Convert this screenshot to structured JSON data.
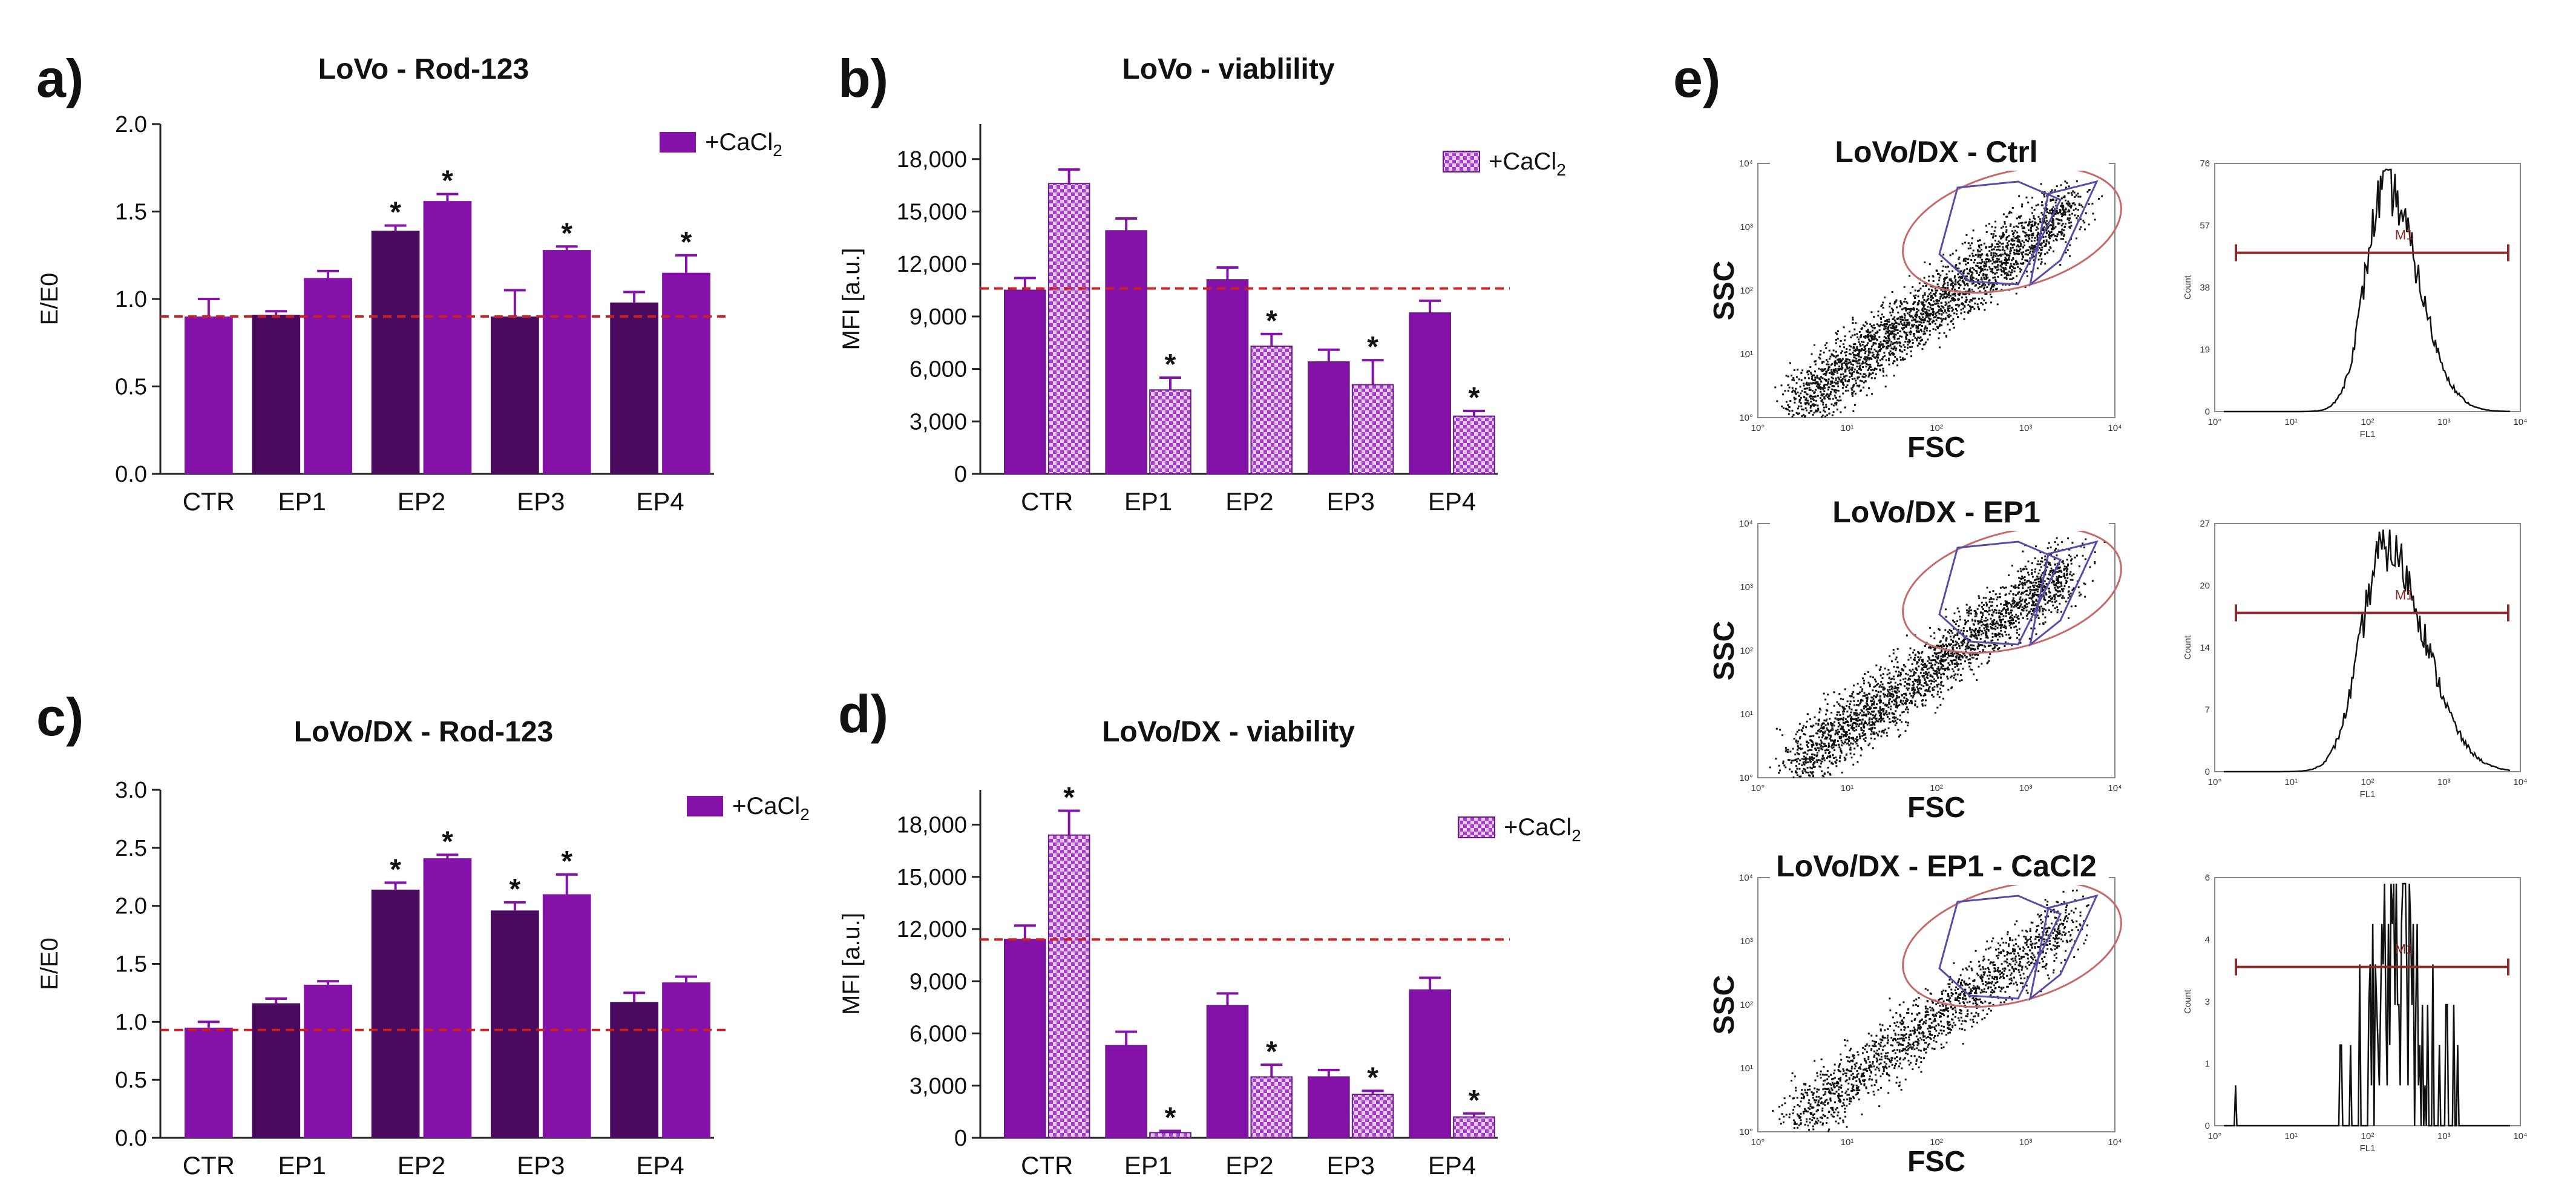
{
  "colors": {
    "purple": "#8412a8",
    "dark_purple": "#4a0a5e",
    "pattern_purple": "#b45cd4",
    "ref_line": "#cc1f1f",
    "gate_ellipse": "#c46a6a",
    "gate_poly": "#5b4aa8",
    "marker": "#8b2a2a"
  },
  "panels": {
    "a": {
      "letter": "a)"
    },
    "b": {
      "letter": "b)"
    },
    "c": {
      "letter": "c)"
    },
    "d": {
      "letter": "d)"
    },
    "e": {
      "letter": "e)"
    }
  },
  "chart_data": [
    {
      "id": "a",
      "type": "bar",
      "title": "LoVo - Rod-123",
      "ylabel": "E/E0",
      "xlabel": "",
      "ylim": [
        0,
        2.0
      ],
      "yticks": [
        "0.0",
        "0.5",
        "1.0",
        "1.5",
        "2.0"
      ],
      "ytick_values": [
        0,
        0.5,
        1.0,
        1.5,
        2.0
      ],
      "categories": [
        "CTR",
        "EP1",
        "EP2",
        "EP3",
        "EP4"
      ],
      "legend": {
        "prefix": "+CaCl",
        "sub": "2",
        "position": "top-right"
      },
      "reference_line": 0.9,
      "bars": [
        {
          "group": "CTR",
          "cond": "control",
          "value": 0.9,
          "error": 0.1,
          "sig": false
        },
        {
          "group": "EP1",
          "cond": "control",
          "value": 0.91,
          "error": 0.02,
          "sig": false
        },
        {
          "group": "EP1",
          "cond": "+CaCl2",
          "value": 1.12,
          "error": 0.04,
          "sig": false
        },
        {
          "group": "EP2",
          "cond": "control",
          "value": 1.39,
          "error": 0.03,
          "sig": true
        },
        {
          "group": "EP2",
          "cond": "+CaCl2",
          "value": 1.56,
          "error": 0.04,
          "sig": true
        },
        {
          "group": "EP3",
          "cond": "control",
          "value": 0.9,
          "error": 0.15,
          "sig": false
        },
        {
          "group": "EP3",
          "cond": "+CaCl2",
          "value": 1.28,
          "error": 0.02,
          "sig": true
        },
        {
          "group": "EP4",
          "cond": "control",
          "value": 0.98,
          "error": 0.06,
          "sig": false
        },
        {
          "group": "EP4",
          "cond": "+CaCl2",
          "value": 1.15,
          "error": 0.1,
          "sig": true
        }
      ],
      "sig_marker": "*"
    },
    {
      "id": "b",
      "type": "bar",
      "title": "LoVo - viablility",
      "ylabel": "MFI [a.u.]",
      "xlabel": "",
      "ylim": [
        0,
        20000
      ],
      "yticks": [
        "0",
        "3,000",
        "6,000",
        "9,000",
        "12,000",
        "15,000",
        "18,000"
      ],
      "ytick_values": [
        0,
        3000,
        6000,
        9000,
        12000,
        15000,
        18000
      ],
      "categories": [
        "CTR",
        "EP1",
        "EP2",
        "EP3",
        "EP4"
      ],
      "legend": {
        "prefix": "+CaCl",
        "sub": "2",
        "position": "top-right"
      },
      "reference_line": 10600,
      "bars": [
        {
          "group": "CTR",
          "cond": "control",
          "value": 10500,
          "error": 700,
          "sig": false
        },
        {
          "group": "CTR",
          "cond": "+CaCl2",
          "value": 16600,
          "error": 800,
          "sig": false
        },
        {
          "group": "EP1",
          "cond": "control",
          "value": 13900,
          "error": 700,
          "sig": false
        },
        {
          "group": "EP1",
          "cond": "+CaCl2",
          "value": 4800,
          "error": 700,
          "sig": true
        },
        {
          "group": "EP2",
          "cond": "control",
          "value": 11100,
          "error": 700,
          "sig": false
        },
        {
          "group": "EP2",
          "cond": "+CaCl2",
          "value": 7300,
          "error": 700,
          "sig": true
        },
        {
          "group": "EP3",
          "cond": "control",
          "value": 6400,
          "error": 700,
          "sig": false
        },
        {
          "group": "EP3",
          "cond": "+CaCl2",
          "value": 5100,
          "error": 1400,
          "sig": true
        },
        {
          "group": "EP4",
          "cond": "control",
          "value": 9200,
          "error": 700,
          "sig": false
        },
        {
          "group": "EP4",
          "cond": "+CaCl2",
          "value": 3300,
          "error": 300,
          "sig": true
        }
      ],
      "sig_marker": "*"
    },
    {
      "id": "c",
      "type": "bar",
      "title": "LoVo/DX - Rod-123",
      "ylabel": "E/E0",
      "xlabel": "",
      "ylim": [
        0,
        3.0
      ],
      "yticks": [
        "0.0",
        "0.5",
        "1.0",
        "1.5",
        "2.0",
        "2.5",
        "3.0"
      ],
      "ytick_values": [
        0,
        0.5,
        1.0,
        1.5,
        2.0,
        2.5,
        3.0
      ],
      "categories": [
        "CTR",
        "EP1",
        "EP2",
        "EP3",
        "EP4"
      ],
      "legend": {
        "prefix": "+CaCl",
        "sub": "2",
        "position": "top-right"
      },
      "reference_line": 0.93,
      "bars": [
        {
          "group": "CTR",
          "cond": "control",
          "value": 0.95,
          "error": 0.05,
          "sig": false
        },
        {
          "group": "EP1",
          "cond": "control",
          "value": 1.16,
          "error": 0.04,
          "sig": false
        },
        {
          "group": "EP1",
          "cond": "+CaCl2",
          "value": 1.32,
          "error": 0.03,
          "sig": false
        },
        {
          "group": "EP2",
          "cond": "control",
          "value": 2.14,
          "error": 0.06,
          "sig": true
        },
        {
          "group": "EP2",
          "cond": "+CaCl2",
          "value": 2.41,
          "error": 0.03,
          "sig": true
        },
        {
          "group": "EP3",
          "cond": "control",
          "value": 1.96,
          "error": 0.07,
          "sig": true
        },
        {
          "group": "EP3",
          "cond": "+CaCl2",
          "value": 2.1,
          "error": 0.17,
          "sig": true
        },
        {
          "group": "EP4",
          "cond": "control",
          "value": 1.17,
          "error": 0.08,
          "sig": false
        },
        {
          "group": "EP4",
          "cond": "+CaCl2",
          "value": 1.34,
          "error": 0.05,
          "sig": false
        }
      ],
      "sig_marker": "*"
    },
    {
      "id": "d",
      "type": "bar",
      "title": "LoVo/DX - viability",
      "ylabel": "MFI [a.u.]",
      "xlabel": "",
      "ylim": [
        0,
        20000
      ],
      "yticks": [
        "0",
        "3,000",
        "6,000",
        "9,000",
        "12,000",
        "15,000",
        "18,000"
      ],
      "ytick_values": [
        0,
        3000,
        6000,
        9000,
        12000,
        15000,
        18000
      ],
      "categories": [
        "CTR",
        "EP1",
        "EP2",
        "EP3",
        "EP4"
      ],
      "legend": {
        "prefix": "+CaCl",
        "sub": "2",
        "position": "top-right"
      },
      "reference_line": 11400,
      "bars": [
        {
          "group": "CTR",
          "cond": "control",
          "value": 11400,
          "error": 800,
          "sig": false
        },
        {
          "group": "CTR",
          "cond": "+CaCl2",
          "value": 17400,
          "error": 1400,
          "sig": true
        },
        {
          "group": "EP1",
          "cond": "control",
          "value": 5300,
          "error": 800,
          "sig": false
        },
        {
          "group": "EP1",
          "cond": "+CaCl2",
          "value": 300,
          "error": 100,
          "sig": true
        },
        {
          "group": "EP2",
          "cond": "control",
          "value": 7600,
          "error": 700,
          "sig": false
        },
        {
          "group": "EP2",
          "cond": "+CaCl2",
          "value": 3500,
          "error": 700,
          "sig": true
        },
        {
          "group": "EP3",
          "cond": "control",
          "value": 3500,
          "error": 400,
          "sig": false
        },
        {
          "group": "EP3",
          "cond": "+CaCl2",
          "value": 2500,
          "error": 200,
          "sig": true
        },
        {
          "group": "EP4",
          "cond": "control",
          "value": 8500,
          "error": 700,
          "sig": false
        },
        {
          "group": "EP4",
          "cond": "+CaCl2",
          "value": 1200,
          "error": 200,
          "sig": true
        }
      ],
      "sig_marker": "*"
    },
    {
      "id": "e",
      "type": "scatter",
      "rows": [
        {
          "title": "LoVo/DX - Ctrl",
          "scatter_ylabel": "SSC",
          "scatter_xlabel": "FSC",
          "hist_ylabel": "Count",
          "hist_xlabel": "FL1",
          "marker_label": "M1",
          "hist_yticks": [
            "0",
            "19",
            "38",
            "57",
            "76"
          ],
          "hist_ymax": 76,
          "hist_peak_log": 2.25,
          "hist_width": 0.28,
          "n_points": 2600
        },
        {
          "title": "LoVo/DX - EP1",
          "scatter_ylabel": "SSC",
          "scatter_xlabel": "FSC",
          "hist_ylabel": "Count",
          "hist_xlabel": "FL1",
          "marker_label": "M1",
          "hist_yticks": [
            "0",
            "7",
            "14",
            "20",
            "27"
          ],
          "hist_ymax": 27,
          "hist_peak_log": 2.25,
          "hist_width": 0.34,
          "n_points": 2400
        },
        {
          "title": "LoVo/DX - EP1 - CaCl2",
          "scatter_ylabel": "SSC",
          "scatter_xlabel": "FSC",
          "hist_ylabel": "Count",
          "hist_xlabel": "FL1",
          "marker_label": "M1",
          "hist_yticks": [
            "0",
            "1",
            "3",
            "4",
            "6"
          ],
          "hist_ymax": 6,
          "hist_peak_log": 2.3,
          "hist_width": 0.25,
          "n_points": 1600
        }
      ],
      "axis_ticks": [
        "10°",
        "10¹",
        "10²",
        "10³",
        "10⁴"
      ]
    }
  ]
}
